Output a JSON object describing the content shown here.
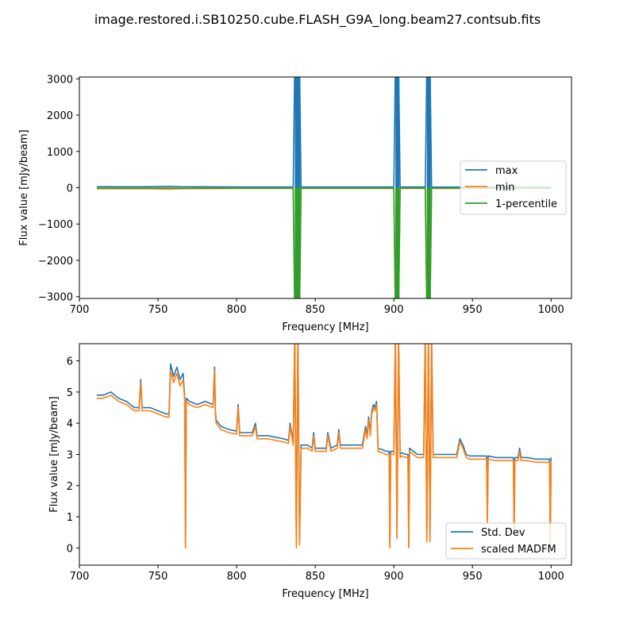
{
  "figure": {
    "title": "image.restored.i.SB10250.cube.FLASH_G9A_long.beam27.contsub.fits"
  },
  "colors": {
    "blue": "#1f77b4",
    "orange": "#ff7f0e",
    "green": "#2ca02c"
  },
  "chart_data": [
    {
      "type": "line",
      "xlabel": "Frequency [MHz]",
      "ylabel": "Flux value [mJy/beam]",
      "xlim": [
        700,
        1013
      ],
      "ylim": [
        -3050,
        3050
      ],
      "xticks": [
        700,
        750,
        800,
        850,
        900,
        950,
        1000
      ],
      "yticks": [
        -3000,
        -2000,
        -1000,
        0,
        1000,
        2000,
        3000
      ],
      "legend_position": "center-right",
      "series": [
        {
          "name": "max",
          "color": "#1f77b4",
          "x": [
            711,
            740,
            758,
            765,
            800,
            836,
            837,
            840,
            841,
            900,
            901,
            903,
            904,
            920,
            921,
            923,
            924,
            1000
          ],
          "y": [
            30,
            25,
            40,
            30,
            20,
            20,
            3500,
            3500,
            20,
            20,
            3500,
            3500,
            20,
            20,
            3500,
            3500,
            20,
            18
          ]
        },
        {
          "name": "min",
          "color": "#ff7f0e",
          "x": [
            711,
            740,
            758,
            765,
            800,
            836,
            837,
            840,
            841,
            900,
            901,
            903,
            904,
            920,
            921,
            923,
            924,
            1000
          ],
          "y": [
            -30,
            -25,
            -40,
            -30,
            -20,
            -20,
            -3500,
            -3500,
            -20,
            -20,
            -3500,
            -3500,
            -20,
            -20,
            -3500,
            -3500,
            -20,
            -18
          ]
        },
        {
          "name": "1-percentile",
          "color": "#2ca02c",
          "x": [
            711,
            800,
            836,
            837,
            840,
            841,
            900,
            901,
            903,
            904,
            920,
            921,
            923,
            924,
            1000
          ],
          "y": [
            -12,
            -10,
            -10,
            -3500,
            -3500,
            -10,
            -10,
            -3500,
            -3500,
            -10,
            -10,
            -3500,
            -3500,
            -10,
            -9
          ]
        }
      ]
    },
    {
      "type": "line",
      "xlabel": "Frequency [MHz]",
      "ylabel": "Flux value [mJy/beam]",
      "xlim": [
        700,
        1013
      ],
      "ylim": [
        -0.55,
        6.55
      ],
      "xticks": [
        700,
        750,
        800,
        850,
        900,
        950,
        1000
      ],
      "yticks": [
        0,
        1,
        2,
        3,
        4,
        5,
        6
      ],
      "legend_position": "lower-right",
      "series": [
        {
          "name": "Std. Dev",
          "color": "#1f77b4",
          "x": [
            711,
            715,
            720,
            725,
            730,
            735,
            738,
            739,
            740,
            745,
            750,
            755,
            757,
            758,
            760,
            762,
            764,
            766,
            767,
            767.5,
            768,
            770,
            775,
            780,
            785,
            786,
            786.5,
            787,
            790,
            795,
            800,
            801,
            802,
            810,
            812,
            813,
            820,
            830,
            833,
            834,
            836,
            837,
            838,
            839,
            840,
            841,
            845,
            848,
            849,
            850,
            855,
            857,
            858,
            860,
            864,
            865,
            866,
            870,
            875,
            880,
            882,
            883,
            884,
            885,
            886,
            887,
            888,
            889,
            890,
            893,
            895,
            897,
            897.5,
            898,
            900,
            901,
            902,
            903,
            904,
            905,
            908,
            909,
            909.5,
            910,
            915,
            919,
            920,
            921,
            922,
            923,
            924,
            925,
            930,
            935,
            940,
            942,
            944,
            946,
            948,
            950,
            955,
            959,
            959.5,
            960,
            965,
            970,
            975,
            976,
            976.5,
            977,
            979,
            980,
            981,
            985,
            990,
            995,
            999,
            999.5,
            1000
          ],
          "y": [
            4.9,
            4.9,
            5.0,
            4.8,
            4.7,
            4.5,
            4.5,
            5.4,
            4.5,
            4.5,
            4.4,
            4.3,
            4.3,
            5.9,
            5.5,
            5.8,
            5.4,
            5.6,
            4.8,
            0.05,
            4.8,
            4.7,
            4.6,
            4.7,
            4.6,
            5.8,
            4.4,
            4.1,
            3.9,
            3.8,
            3.75,
            4.6,
            3.7,
            3.7,
            4.0,
            3.6,
            3.6,
            3.5,
            3.45,
            4.0,
            3.4,
            6.8,
            0.2,
            6.8,
            0.2,
            3.3,
            3.3,
            3.2,
            3.7,
            3.2,
            3.2,
            3.2,
            3.7,
            3.2,
            3.3,
            3.8,
            3.3,
            3.3,
            3.3,
            3.3,
            3.9,
            3.6,
            4.2,
            3.7,
            4.4,
            4.6,
            4.5,
            4.7,
            3.2,
            3.15,
            3.1,
            3.1,
            0.05,
            3.1,
            3.1,
            6.8,
            0.4,
            6.8,
            3.0,
            3.05,
            3.0,
            3.0,
            0.05,
            3.2,
            3.0,
            3.0,
            6.8,
            0.3,
            6.8,
            0.3,
            6.8,
            3.0,
            3.0,
            3.0,
            3.0,
            3.5,
            3.3,
            3.0,
            2.95,
            2.95,
            2.95,
            2.95,
            0.9,
            2.95,
            2.9,
            2.9,
            2.9,
            2.9,
            0.6,
            2.9,
            2.9,
            3.2,
            2.9,
            2.9,
            2.85,
            2.85,
            2.85,
            0.1,
            2.9
          ]
        },
        {
          "name": "scaled MADFM",
          "color": "#ff7f0e",
          "x": [
            711,
            715,
            720,
            725,
            730,
            735,
            738,
            739,
            740,
            745,
            750,
            755,
            757,
            758,
            760,
            762,
            764,
            766,
            767,
            767.5,
            768,
            770,
            775,
            780,
            785,
            786,
            786.5,
            787,
            790,
            795,
            800,
            801,
            802,
            810,
            812,
            813,
            820,
            830,
            833,
            834,
            836,
            837,
            838,
            839,
            840,
            841,
            845,
            848,
            849,
            850,
            855,
            857,
            858,
            860,
            864,
            865,
            866,
            870,
            875,
            880,
            882,
            883,
            884,
            885,
            886,
            887,
            888,
            889,
            890,
            893,
            895,
            897,
            897.5,
            898,
            900,
            901,
            902,
            903,
            904,
            905,
            908,
            909,
            909.5,
            910,
            915,
            919,
            920,
            921,
            922,
            923,
            924,
            925,
            930,
            935,
            940,
            942,
            944,
            946,
            948,
            950,
            955,
            959,
            959.5,
            960,
            965,
            970,
            975,
            976,
            976.5,
            977,
            979,
            980,
            981,
            985,
            990,
            995,
            999,
            999.5,
            1000
          ],
          "y": [
            4.8,
            4.8,
            4.9,
            4.7,
            4.6,
            4.4,
            4.4,
            5.3,
            4.4,
            4.4,
            4.3,
            4.2,
            4.2,
            5.7,
            5.3,
            5.6,
            5.2,
            5.4,
            4.7,
            0.0,
            4.7,
            4.6,
            4.5,
            4.6,
            4.5,
            5.7,
            4.3,
            4.0,
            3.8,
            3.7,
            3.65,
            4.5,
            3.6,
            3.6,
            3.9,
            3.5,
            3.5,
            3.4,
            3.35,
            3.9,
            3.3,
            6.8,
            0.0,
            6.8,
            0.1,
            3.2,
            3.2,
            3.1,
            3.6,
            3.1,
            3.1,
            3.1,
            3.6,
            3.1,
            3.2,
            3.7,
            3.2,
            3.2,
            3.2,
            3.2,
            3.8,
            3.5,
            4.1,
            3.6,
            4.3,
            4.5,
            4.4,
            4.6,
            3.1,
            3.05,
            3.0,
            3.0,
            0.0,
            3.0,
            3.0,
            6.8,
            0.3,
            6.8,
            2.9,
            2.95,
            2.9,
            2.9,
            0.0,
            3.1,
            2.9,
            2.9,
            6.8,
            0.2,
            6.8,
            0.2,
            6.8,
            2.9,
            2.9,
            2.9,
            2.9,
            3.4,
            3.2,
            2.9,
            2.85,
            2.85,
            2.85,
            2.85,
            0.8,
            2.85,
            2.8,
            2.8,
            2.8,
            2.8,
            0.5,
            2.8,
            2.8,
            3.1,
            2.8,
            2.8,
            2.75,
            2.75,
            2.75,
            0.0,
            2.8
          ]
        }
      ]
    }
  ]
}
